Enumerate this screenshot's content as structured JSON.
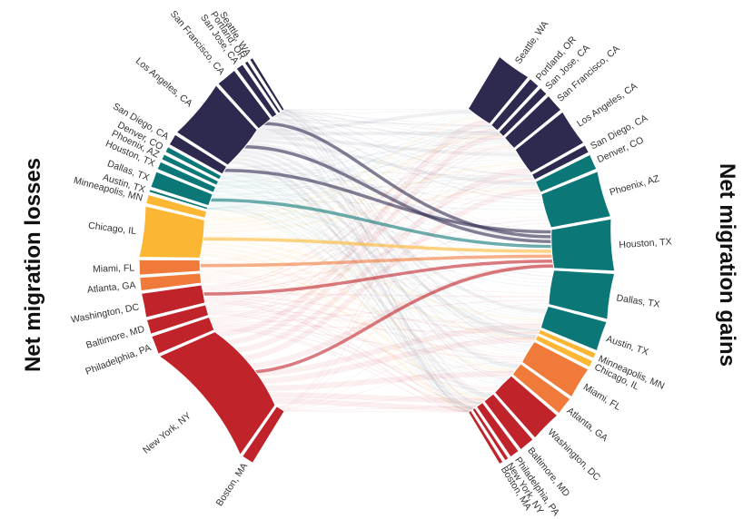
{
  "chart_data": {
    "type": "chord",
    "left_title": "Net migration losses",
    "right_title": "Net migration gains",
    "region_colors": {
      "northeast": "#c0232a",
      "southeast": "#f07a3a",
      "midwest": "#fbb733",
      "texas_southwest": "#0b7877",
      "west": "#2e2a4f"
    },
    "left_segments": [
      {
        "label": "Boston, MA",
        "value": 2.1,
        "region": "northeast"
      },
      {
        "label": "New York, NY",
        "value": 22,
        "region": "northeast"
      },
      {
        "label": "Philadelphia, PA",
        "value": 3.2,
        "region": "northeast"
      },
      {
        "label": "Baltimore, MD",
        "value": 2.5,
        "region": "northeast"
      },
      {
        "label": "Washington, DC",
        "value": 4.2,
        "region": "northeast"
      },
      {
        "label": "Atlanta, GA",
        "value": 2.3,
        "region": "southeast"
      },
      {
        "label": "Miami, FL",
        "value": 2.6,
        "region": "southeast"
      },
      {
        "label": "Chicago, IL",
        "value": 8.8,
        "region": "midwest"
      },
      {
        "label": "Minneapolis, MN",
        "value": 1.6,
        "region": "midwest"
      },
      {
        "label": "Austin, TX",
        "value": 0.5,
        "region": "texas_southwest"
      },
      {
        "label": "Dallas, TX",
        "value": 2.8,
        "region": "texas_southwest"
      },
      {
        "label": "Houston, TX",
        "value": 1.4,
        "region": "texas_southwest"
      },
      {
        "label": "Phoenix, AZ",
        "value": 1.0,
        "region": "texas_southwest"
      },
      {
        "label": "Denver, CO",
        "value": 1.0,
        "region": "texas_southwest"
      },
      {
        "label": "San Diego, CA",
        "value": 2.0,
        "region": "west"
      },
      {
        "label": "Los Angeles, CA",
        "value": 10.5,
        "region": "west"
      },
      {
        "label": "San Francisco, CA",
        "value": 3.6,
        "region": "west"
      },
      {
        "label": "San Jose, CA",
        "value": 1.3,
        "region": "west"
      },
      {
        "label": "Portland, OR",
        "value": 0.6,
        "region": "west"
      },
      {
        "label": "Seattle, WA",
        "value": 0.6,
        "region": "west"
      }
    ],
    "right_segments": [
      {
        "label": "Boston, MA",
        "value": 0.7,
        "region": "northeast"
      },
      {
        "label": "New York, NY",
        "value": 0.7,
        "region": "northeast"
      },
      {
        "label": "Philadelphia, PA",
        "value": 1.7,
        "region": "northeast"
      },
      {
        "label": "Baltimore, MD",
        "value": 2.7,
        "region": "northeast"
      },
      {
        "label": "Washington, DC",
        "value": 5.4,
        "region": "northeast"
      },
      {
        "label": "Atlanta, GA",
        "value": 3.1,
        "region": "southeast"
      },
      {
        "label": "Miami, FL",
        "value": 5.5,
        "region": "southeast"
      },
      {
        "label": "Chicago, IL",
        "value": 1.2,
        "region": "midwest"
      },
      {
        "label": "Minneapolis, MN",
        "value": 1.0,
        "region": "midwest"
      },
      {
        "label": "Austin, TX",
        "value": 5.2,
        "region": "texas_southwest"
      },
      {
        "label": "Dallas, TX",
        "value": 7.9,
        "region": "texas_southwest"
      },
      {
        "label": "Houston, TX",
        "value": 8.9,
        "region": "texas_southwest"
      },
      {
        "label": "Phoenix, AZ",
        "value": 8.0,
        "region": "texas_southwest"
      },
      {
        "label": "Denver, CO",
        "value": 2.7,
        "region": "texas_southwest"
      },
      {
        "label": "San Diego, CA",
        "value": 1.4,
        "region": "west"
      },
      {
        "label": "Los Angeles, CA",
        "value": 6.4,
        "region": "west"
      },
      {
        "label": "San Francisco, CA",
        "value": 3.2,
        "region": "west"
      },
      {
        "label": "San Jose, CA",
        "value": 1.5,
        "region": "west"
      },
      {
        "label": "Portland, OR",
        "value": 1.9,
        "region": "west"
      },
      {
        "label": "Seattle, WA",
        "value": 6.0,
        "region": "west"
      }
    ],
    "highlighted_flows": [
      {
        "from": "New York, NY",
        "to": "Houston, TX",
        "region": "northeast"
      },
      {
        "from": "Washington, DC",
        "to": "Houston, TX",
        "region": "northeast"
      },
      {
        "from": "Miami, FL",
        "to": "Houston, TX",
        "region": "southeast"
      },
      {
        "from": "Chicago, IL",
        "to": "Houston, TX",
        "region": "midwest"
      },
      {
        "from": "Dallas, TX",
        "to": "Houston, TX",
        "region": "texas_southwest"
      },
      {
        "from": "Los Angeles, CA",
        "to": "Houston, TX",
        "region": "west"
      },
      {
        "from": "San Francisco, CA",
        "to": "Houston, TX",
        "region": "west"
      },
      {
        "from": "San Diego, CA",
        "to": "Houston, TX",
        "region": "west"
      }
    ]
  }
}
